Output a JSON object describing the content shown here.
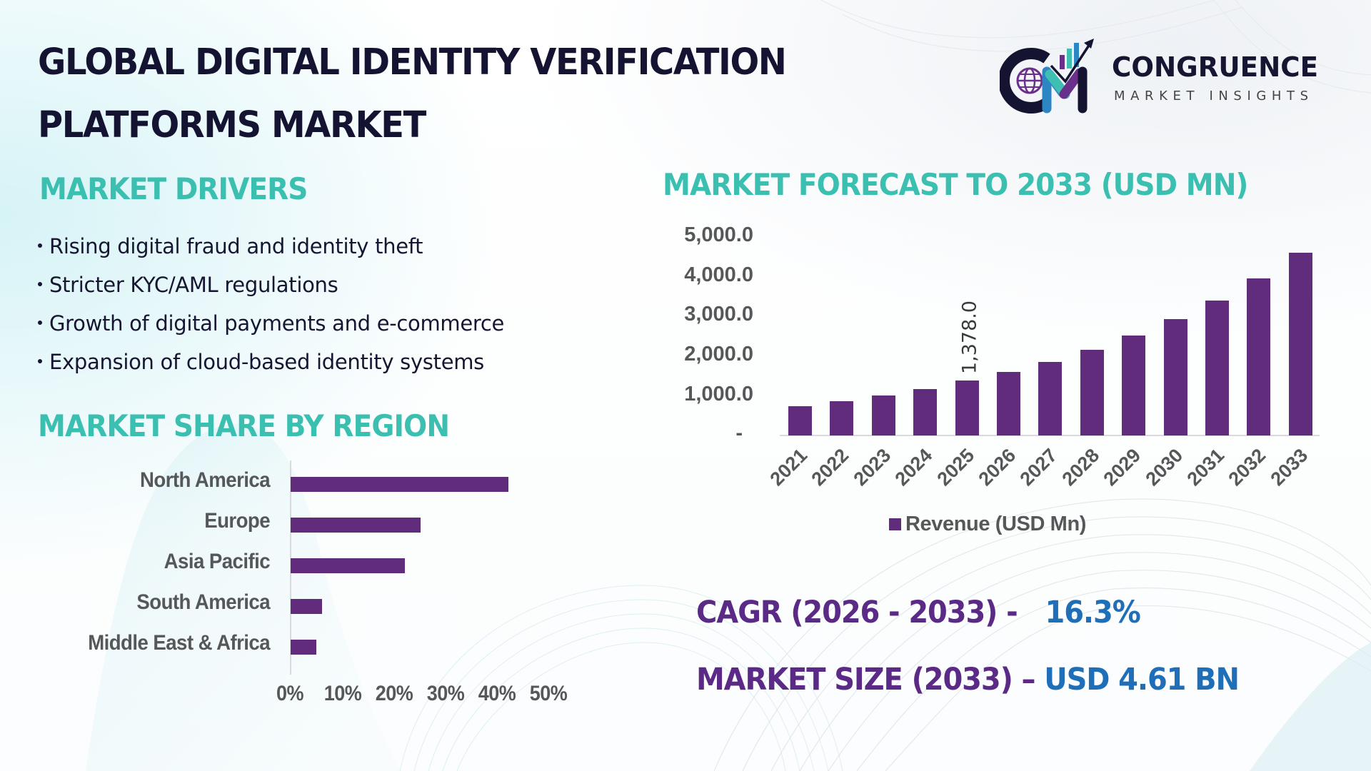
{
  "header": {
    "title_line1": "GLOBAL DIGITAL IDENTITY VERIFICATION",
    "title_line2": "PLATFORMS MARKET"
  },
  "logo": {
    "name": "CONGRUENCE",
    "subtitle": "MARKET INSIGHTS",
    "icon": "cm-globe-chart-logo-icon"
  },
  "drivers": {
    "heading": "MARKET DRIVERS",
    "items": [
      "Rising digital fraud and identity theft",
      "Stricter KYC/AML regulations",
      "Growth of digital payments and e-commerce",
      "Expansion of cloud-based identity systems"
    ]
  },
  "region": {
    "heading": "MARKET SHARE BY REGION"
  },
  "forecast": {
    "heading": "MARKET FORECAST TO 2033 (USD MN)"
  },
  "kpis": {
    "cagr_label": "CAGR (2026 - 2033) -",
    "cagr_value": "16.3%",
    "size_label": "MARKET SIZE (2033) –",
    "size_value": "USD 4.61 BN"
  },
  "colors": {
    "title": "#141432",
    "heading_teal": "#3bbfb0",
    "bar_purple": "#612c7c",
    "kpi_purple": "#5b2a86",
    "kpi_blue": "#1e6fb8",
    "axis_text": "#555759"
  },
  "chart_data": [
    {
      "type": "bar",
      "orientation": "horizontal",
      "title": "MARKET SHARE BY REGION",
      "categories": [
        "North America",
        "Europe",
        "Asia Pacific",
        "South America",
        "Middle East & Africa"
      ],
      "values": [
        42,
        25,
        22,
        6,
        5
      ],
      "unit": "%",
      "xlabel": "",
      "ylabel": "",
      "xlim": [
        0,
        50
      ],
      "x_ticks": [
        "0%",
        "10%",
        "20%",
        "30%",
        "40%",
        "50%"
      ],
      "grid": false,
      "legend": null
    },
    {
      "type": "bar",
      "orientation": "vertical",
      "title": "MARKET FORECAST TO 2033 (USD MN)",
      "categories": [
        "2021",
        "2022",
        "2023",
        "2024",
        "2025",
        "2026",
        "2027",
        "2028",
        "2029",
        "2030",
        "2031",
        "2032",
        "2033"
      ],
      "series": [
        {
          "name": "Revenue (USD Mn)",
          "values": [
            737,
            863,
            1007,
            1169,
            1378,
            1601,
            1852,
            2158,
            2518,
            2932,
            3399,
            3957,
            4610
          ]
        }
      ],
      "data_labels": [
        {
          "category": "2025",
          "text": "1,378.0"
        }
      ],
      "xlabel": "",
      "ylabel": "",
      "ylim": [
        0,
        5000
      ],
      "y_ticks": [
        "-",
        "1,000.0",
        "2,000.0",
        "3,000.0",
        "4,000.0",
        "5,000.0"
      ],
      "grid": false,
      "legend_position": "bottom"
    }
  ]
}
